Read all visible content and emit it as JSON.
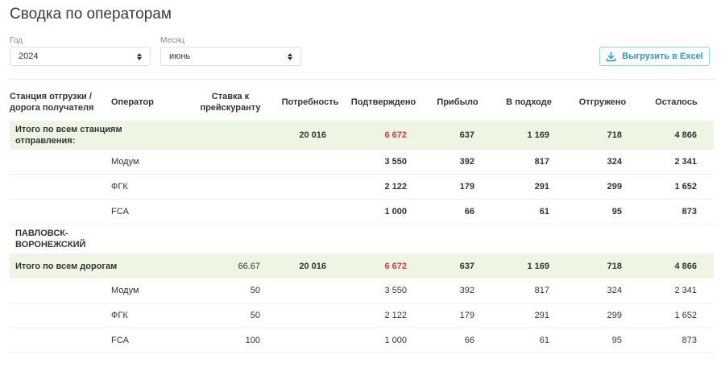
{
  "page": {
    "title": "Сводка по операторам"
  },
  "filters": {
    "year": {
      "label": "Год",
      "value": "2024"
    },
    "month": {
      "label": "Месяц",
      "value": "июнь"
    }
  },
  "toolbar": {
    "export_label": "Выгрузить в Excel",
    "export_icon": "download-icon"
  },
  "colors": {
    "accent": "#1e9bd7",
    "total_bg": "#eef6e3",
    "negative": "#d9363e"
  },
  "table": {
    "headers": {
      "station": "Станция отгрузки / дорога получателя",
      "operator": "Оператор",
      "rate": "Ставка к прейскуранту",
      "demand": "Потребность",
      "confirmed": "Подтверждено",
      "arrived": "Прибыло",
      "approaching": "В подходе",
      "shipped": "Отгружено",
      "remaining": "Осталось"
    },
    "total_all_stations": {
      "label": "Итого по всем станциям отправления:",
      "rate": "",
      "demand": "20 016",
      "confirmed": "6 672",
      "arrived": "637",
      "approaching": "1 169",
      "shipped": "718",
      "remaining": "4 866"
    },
    "station_operators": [
      {
        "operator": "Модум",
        "confirmed": "3 550",
        "arrived": "392",
        "approaching": "817",
        "shipped": "324",
        "remaining": "2 341"
      },
      {
        "operator": "ФГК",
        "confirmed": "2 122",
        "arrived": "179",
        "approaching": "291",
        "shipped": "299",
        "remaining": "1 652"
      },
      {
        "operator": "FCA",
        "confirmed": "1 000",
        "arrived": "66",
        "approaching": "61",
        "shipped": "95",
        "remaining": "873"
      }
    ],
    "station_name": "ПАВЛОВСК-ВОРОНЕЖСКИЙ",
    "total_all_roads": {
      "label": "Итого по всем дорогам",
      "rate": "66.67",
      "demand": "20 016",
      "confirmed": "6 672",
      "arrived": "637",
      "approaching": "1 169",
      "shipped": "718",
      "remaining": "4 866"
    },
    "road_operators": [
      {
        "operator": "Модум",
        "rate": "50",
        "confirmed": "3 550",
        "arrived": "392",
        "approaching": "817",
        "shipped": "324",
        "remaining": "2 341"
      },
      {
        "operator": "ФГК",
        "rate": "50",
        "confirmed": "2 122",
        "arrived": "179",
        "approaching": "291",
        "shipped": "299",
        "remaining": "1 652"
      },
      {
        "operator": "FCA",
        "rate": "100",
        "confirmed": "1 000",
        "arrived": "66",
        "approaching": "61",
        "shipped": "95",
        "remaining": "873"
      }
    ]
  }
}
